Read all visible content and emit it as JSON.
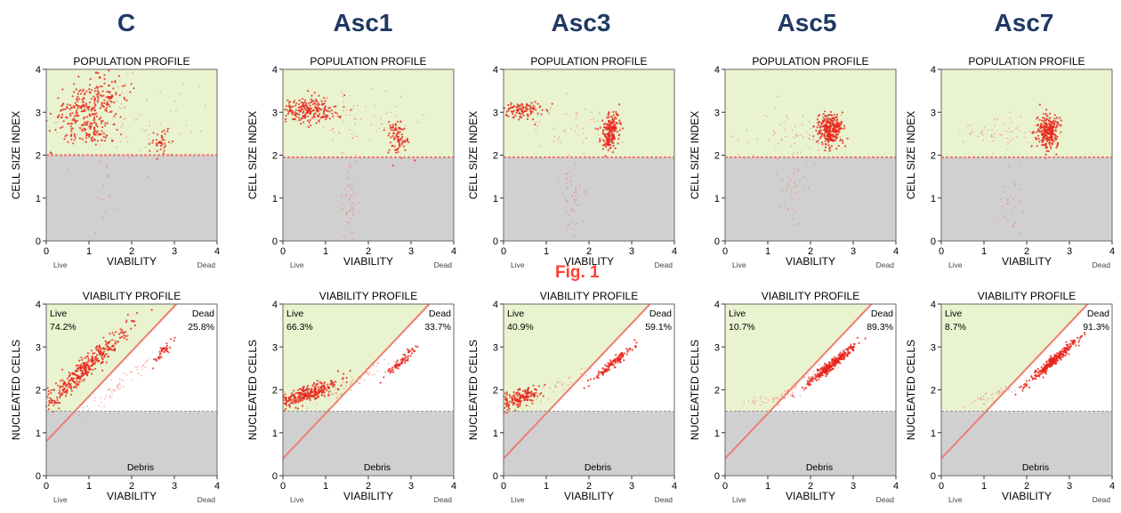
{
  "figure_label": "Fig. 1",
  "chart_data": [
    {
      "column": "C",
      "type": "scatter",
      "title": "POPULATION PROFILE",
      "xlabel": "VIABILITY",
      "ylabel": "CELL SIZE INDEX",
      "x_end_labels": [
        "Live",
        "Dead"
      ],
      "xlim": [
        0,
        4
      ],
      "ylim": [
        0,
        4
      ],
      "xticks": [
        0,
        1,
        2,
        3,
        4
      ],
      "yticks": [
        0,
        1,
        2,
        3,
        4
      ],
      "gate_y": 2,
      "clusters": [
        {
          "cx": 1.0,
          "cy": 3.15,
          "sx": 0.45,
          "sy": 0.28,
          "n": 260,
          "tilt": 0.35
        },
        {
          "cx": 1.1,
          "cy": 2.55,
          "sx": 0.3,
          "sy": 0.15,
          "n": 80,
          "tilt": 0
        },
        {
          "cx": 2.7,
          "cy": 2.3,
          "sx": 0.12,
          "sy": 0.15,
          "n": 40,
          "tilt": 0
        },
        {
          "cx": 2.0,
          "cy": 2.8,
          "sx": 0.8,
          "sy": 0.5,
          "n": 70,
          "tilt": 0,
          "light": true
        },
        {
          "cx": 1.4,
          "cy": 1.0,
          "sx": 0.15,
          "sy": 0.5,
          "n": 15,
          "tilt": 0,
          "light": true
        }
      ]
    },
    {
      "column": "C",
      "type": "scatter",
      "title": "VIABILITY PROFILE",
      "xlabel": "VIABILITY",
      "ylabel": "NUCLEATED CELLS",
      "x_end_labels": [
        "Live",
        "Dead"
      ],
      "xlim": [
        0,
        4
      ],
      "ylim": [
        0,
        4
      ],
      "xticks": [
        0,
        1,
        2,
        3,
        4
      ],
      "yticks": [
        0,
        1,
        2,
        3,
        4
      ],
      "debris_y": 1.5,
      "gate_line": {
        "intercept": 0.8,
        "slope": 1.05
      },
      "live_label": "Live",
      "live_pct": "74.2%",
      "dead_label": "Dead",
      "dead_pct": "25.8%",
      "debris_label": "Debris",
      "clusters": [
        {
          "cx": 0.9,
          "cy": 2.5,
          "sx": 0.5,
          "sy": 0.14,
          "n": 380,
          "tilt": 0.9
        },
        {
          "cx": 2.75,
          "cy": 2.9,
          "sx": 0.12,
          "sy": 0.06,
          "n": 40,
          "tilt": 1.1
        },
        {
          "cx": 1.8,
          "cy": 2.2,
          "sx": 0.55,
          "sy": 0.1,
          "n": 60,
          "tilt": 0.8,
          "light": true
        }
      ]
    },
    {
      "column": "Asc1",
      "type": "scatter",
      "title": "POPULATION PROFILE",
      "xlabel": "VIABILITY",
      "ylabel": "CELL SIZE INDEX",
      "x_end_labels": [
        "Live",
        "Dead"
      ],
      "xlim": [
        0,
        4
      ],
      "ylim": [
        0,
        4
      ],
      "xticks": [
        0,
        1,
        2,
        3,
        4
      ],
      "yticks": [
        0,
        1,
        2,
        3,
        4
      ],
      "gate_y": 1.95,
      "clusters": [
        {
          "cx": 0.6,
          "cy": 3.05,
          "sx": 0.35,
          "sy": 0.15,
          "n": 220,
          "tilt": 0
        },
        {
          "cx": 2.7,
          "cy": 2.4,
          "sx": 0.12,
          "sy": 0.22,
          "n": 90,
          "tilt": 0
        },
        {
          "cx": 1.8,
          "cy": 2.8,
          "sx": 0.7,
          "sy": 0.4,
          "n": 60,
          "tilt": 0,
          "light": true
        },
        {
          "cx": 1.55,
          "cy": 0.9,
          "sx": 0.12,
          "sy": 0.6,
          "n": 60,
          "tilt": 0,
          "light": true
        }
      ]
    },
    {
      "column": "Asc1",
      "type": "scatter",
      "title": "VIABILITY PROFILE",
      "xlabel": "VIABILITY",
      "ylabel": "NUCLEATED CELLS",
      "x_end_labels": [
        "Live",
        "Dead"
      ],
      "xlim": [
        0,
        4
      ],
      "ylim": [
        0,
        4
      ],
      "xticks": [
        0,
        1,
        2,
        3,
        4
      ],
      "yticks": [
        0,
        1,
        2,
        3,
        4
      ],
      "debris_y": 1.5,
      "gate_line": {
        "intercept": 0.4,
        "slope": 1.05
      },
      "live_label": "Live",
      "live_pct": "66.3%",
      "dead_label": "Dead",
      "dead_pct": "33.7%",
      "debris_label": "Debris",
      "clusters": [
        {
          "cx": 0.55,
          "cy": 1.9,
          "sx": 0.35,
          "sy": 0.1,
          "n": 300,
          "tilt": 0.35
        },
        {
          "cx": 2.75,
          "cy": 2.65,
          "sx": 0.18,
          "sy": 0.05,
          "n": 70,
          "tilt": 0.9
        },
        {
          "cx": 1.7,
          "cy": 2.2,
          "sx": 0.5,
          "sy": 0.1,
          "n": 60,
          "tilt": 0.6,
          "light": true
        }
      ]
    },
    {
      "column": "Asc3",
      "type": "scatter",
      "title": "POPULATION PROFILE",
      "xlabel": "VIABILITY",
      "ylabel": "CELL SIZE INDEX",
      "x_end_labels": [
        "Live",
        "Dead"
      ],
      "xlim": [
        0,
        4
      ],
      "ylim": [
        0,
        4
      ],
      "xticks": [
        0,
        1,
        2,
        3,
        4
      ],
      "yticks": [
        0,
        1,
        2,
        3,
        4
      ],
      "gate_y": 1.95,
      "clusters": [
        {
          "cx": 0.4,
          "cy": 3.05,
          "sx": 0.28,
          "sy": 0.1,
          "n": 120,
          "tilt": 0
        },
        {
          "cx": 2.5,
          "cy": 2.55,
          "sx": 0.1,
          "sy": 0.22,
          "n": 200,
          "tilt": 0
        },
        {
          "cx": 1.6,
          "cy": 2.7,
          "sx": 0.6,
          "sy": 0.3,
          "n": 50,
          "tilt": 0,
          "light": true
        },
        {
          "cx": 1.6,
          "cy": 1.0,
          "sx": 0.18,
          "sy": 0.5,
          "n": 60,
          "tilt": 0,
          "light": true
        }
      ]
    },
    {
      "column": "Asc3",
      "type": "scatter",
      "title": "VIABILITY PROFILE",
      "xlabel": "VIABILITY",
      "ylabel": "NUCLEATED CELLS",
      "x_end_labels": [
        "Live",
        "Dead"
      ],
      "xlim": [
        0,
        4
      ],
      "ylim": [
        0,
        4
      ],
      "xticks": [
        0,
        1,
        2,
        3,
        4
      ],
      "yticks": [
        0,
        1,
        2,
        3,
        4
      ],
      "debris_y": 1.5,
      "gate_line": {
        "intercept": 0.4,
        "slope": 1.05
      },
      "live_label": "Live",
      "live_pct": "40.9%",
      "dead_label": "Dead",
      "dead_pct": "59.1%",
      "debris_label": "Debris",
      "clusters": [
        {
          "cx": 0.35,
          "cy": 1.8,
          "sx": 0.3,
          "sy": 0.1,
          "n": 180,
          "tilt": 0.35
        },
        {
          "cx": 2.6,
          "cy": 2.65,
          "sx": 0.25,
          "sy": 0.05,
          "n": 130,
          "tilt": 0.8
        },
        {
          "cx": 1.2,
          "cy": 2.05,
          "sx": 0.4,
          "sy": 0.1,
          "n": 30,
          "tilt": 0.5,
          "light": true
        }
      ]
    },
    {
      "column": "Asc5",
      "type": "scatter",
      "title": "POPULATION PROFILE",
      "xlabel": "VIABILITY",
      "ylabel": "CELL SIZE INDEX",
      "x_end_labels": [
        "Live",
        "Dead"
      ],
      "xlim": [
        0,
        4
      ],
      "ylim": [
        0,
        4
      ],
      "xticks": [
        0,
        1,
        2,
        3,
        4
      ],
      "yticks": [
        0,
        1,
        2,
        3,
        4
      ],
      "gate_y": 1.95,
      "clusters": [
        {
          "cx": 2.45,
          "cy": 2.6,
          "sx": 0.15,
          "sy": 0.18,
          "n": 280,
          "tilt": 0
        },
        {
          "cx": 1.5,
          "cy": 2.5,
          "sx": 0.6,
          "sy": 0.25,
          "n": 60,
          "tilt": 0,
          "light": true
        },
        {
          "cx": 1.6,
          "cy": 1.1,
          "sx": 0.2,
          "sy": 0.5,
          "n": 40,
          "tilt": 0,
          "light": true
        }
      ]
    },
    {
      "column": "Asc5",
      "type": "scatter",
      "title": "VIABILITY PROFILE",
      "xlabel": "VIABILITY",
      "ylabel": "NUCLEATED CELLS",
      "x_end_labels": [
        "Live",
        "Dead"
      ],
      "xlim": [
        0,
        4
      ],
      "ylim": [
        0,
        4
      ],
      "xticks": [
        0,
        1,
        2,
        3,
        4
      ],
      "yticks": [
        0,
        1,
        2,
        3,
        4
      ],
      "debris_y": 1.5,
      "gate_line": {
        "intercept": 0.4,
        "slope": 1.05
      },
      "live_label": "Live",
      "live_pct": "10.7%",
      "dead_label": "Dead",
      "dead_pct": "89.3%",
      "debris_label": "Debris",
      "clusters": [
        {
          "cx": 2.5,
          "cy": 2.6,
          "sx": 0.28,
          "sy": 0.06,
          "n": 300,
          "tilt": 0.8
        },
        {
          "cx": 0.9,
          "cy": 1.75,
          "sx": 0.4,
          "sy": 0.08,
          "n": 40,
          "tilt": 0.2,
          "light": true
        },
        {
          "cx": 1.7,
          "cy": 2.1,
          "sx": 0.35,
          "sy": 0.08,
          "n": 40,
          "tilt": 0.7,
          "light": true
        }
      ]
    },
    {
      "column": "Asc7",
      "type": "scatter",
      "title": "POPULATION PROFILE",
      "xlabel": "VIABILITY",
      "ylabel": "CELL SIZE INDEX",
      "x_end_labels": [
        "Live",
        "Dead"
      ],
      "xlim": [
        0,
        4
      ],
      "ylim": [
        0,
        4
      ],
      "xticks": [
        0,
        1,
        2,
        3,
        4
      ],
      "yticks": [
        0,
        1,
        2,
        3,
        4
      ],
      "gate_y": 1.95,
      "clusters": [
        {
          "cx": 2.5,
          "cy": 2.55,
          "sx": 0.13,
          "sy": 0.2,
          "n": 260,
          "tilt": 0
        },
        {
          "cx": 1.3,
          "cy": 2.55,
          "sx": 0.5,
          "sy": 0.2,
          "n": 60,
          "tilt": 0,
          "light": true
        },
        {
          "cx": 1.6,
          "cy": 1.0,
          "sx": 0.15,
          "sy": 0.5,
          "n": 30,
          "tilt": 0,
          "light": true
        }
      ]
    },
    {
      "column": "Asc7",
      "type": "scatter",
      "title": "VIABILITY PROFILE",
      "xlabel": "VIABILITY",
      "ylabel": "NUCLEATED CELLS",
      "x_end_labels": [
        "Live",
        "Dead"
      ],
      "xlim": [
        0,
        4
      ],
      "ylim": [
        0,
        4
      ],
      "xticks": [
        0,
        1,
        2,
        3,
        4
      ],
      "yticks": [
        0,
        1,
        2,
        3,
        4
      ],
      "debris_y": 1.5,
      "gate_line": {
        "intercept": 0.4,
        "slope": 1.05
      },
      "live_label": "Live",
      "live_pct": "8.7%",
      "dead_label": "Dead",
      "dead_pct": "91.3%",
      "debris_label": "Debris",
      "clusters": [
        {
          "cx": 2.6,
          "cy": 2.65,
          "sx": 0.3,
          "sy": 0.06,
          "n": 280,
          "tilt": 0.85
        },
        {
          "cx": 1.2,
          "cy": 1.85,
          "sx": 0.35,
          "sy": 0.08,
          "n": 40,
          "tilt": 0.4,
          "light": true
        }
      ]
    }
  ],
  "colors": {
    "gate_fill": "#e9f3cf",
    "debris_fill": "#d0d0d0",
    "point": "#e8241a",
    "point_light": "#f07a6e",
    "gate_line": "#ef7e72"
  }
}
